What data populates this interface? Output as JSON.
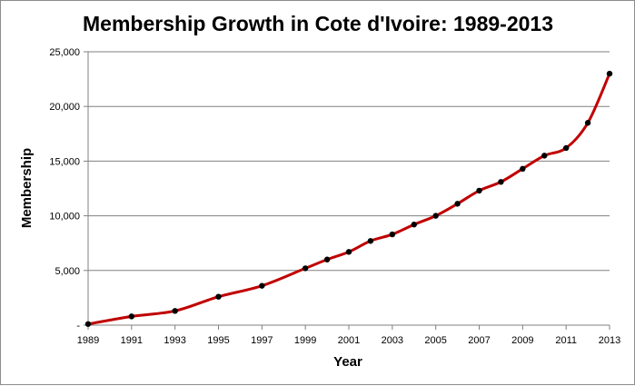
{
  "chart_data": {
    "type": "line",
    "title": "Membership Growth in Cote d'Ivoire: 1989-2013",
    "xlabel": "Year",
    "ylabel": "Membership",
    "xlim": [
      1989,
      2013
    ],
    "ylim": [
      0,
      25000
    ],
    "x_tick_labels": [
      "1989",
      "1991",
      "1993",
      "1995",
      "1997",
      "1999",
      "2001",
      "2003",
      "2005",
      "2007",
      "2009",
      "2011",
      "2013"
    ],
    "x_ticks": [
      1989,
      1991,
      1993,
      1995,
      1997,
      1999,
      2001,
      2003,
      2005,
      2007,
      2009,
      2011,
      2013
    ],
    "y_tick_labels": [
      "-",
      "5,000",
      "10,000",
      "15,000",
      "20,000",
      "25,000"
    ],
    "y_ticks": [
      0,
      5000,
      10000,
      15000,
      20000,
      25000
    ],
    "grid": "horizontal",
    "legend": "none",
    "series": [
      {
        "x": [
          1989,
          1991,
          1993,
          1995,
          1997,
          1999,
          2000,
          2001,
          2002,
          2003,
          2004,
          2005,
          2006,
          2007,
          2008,
          2009,
          2010,
          2011,
          2012,
          2013
        ],
        "y": [
          100,
          800,
          1300,
          2600,
          3600,
          5200,
          6000,
          6700,
          7700,
          8300,
          9200,
          10000,
          11100,
          12300,
          13100,
          14300,
          15500,
          16200,
          18500,
          23000
        ]
      }
    ],
    "colors": {
      "line": "#c00000",
      "marker": "#000000",
      "grid": "#808080",
      "axis": "#808080"
    }
  }
}
